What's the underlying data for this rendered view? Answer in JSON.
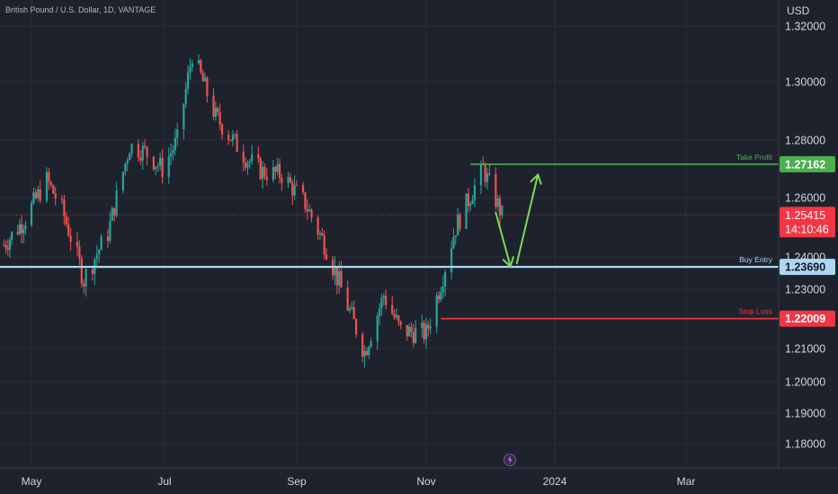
{
  "header": {
    "symbol_title": "British Pound / U.S. Dollar, 1D, VANTAGE",
    "currency": "USD"
  },
  "colors": {
    "background": "#1e222d",
    "up": "#26a69a",
    "down": "#ef5350",
    "grid": "#2a2e39",
    "axis_text": "#d1d4dc",
    "take_profit": "#4caf50",
    "buy_entry": "#aed6f1",
    "stop_loss": "#f23645",
    "arrow": "#7ed957",
    "current_price": "#f23645"
  },
  "chart_data": {
    "type": "candlestick",
    "y_ticks": [
      "1.32000",
      "1.30000",
      "1.28000",
      "1.26000",
      "1.24000",
      "1.23000",
      "1.21000",
      "1.20000",
      "1.19000",
      "1.18000"
    ],
    "x_ticks": [
      "May",
      "Jul",
      "Sep",
      "Nov",
      "2024",
      "Mar"
    ],
    "ylim": [
      1.172,
      1.325
    ],
    "x_range_months": [
      "2023-04-15",
      "2024-03-25"
    ],
    "levels": [
      {
        "key": "take_profit",
        "label": "Take Profit",
        "value": 1.27162,
        "value_text": "1.27162",
        "start": "2023-11-22",
        "color": "#4caf50"
      },
      {
        "key": "buy_entry",
        "label": "Buy Entry",
        "value": 1.2369,
        "value_text": "1.23690",
        "start": "2023-04-15",
        "color": "#aed6f1"
      },
      {
        "key": "stop_loss",
        "label": "Stop Loss",
        "value": 1.22009,
        "value_text": "1.22009",
        "start": "2023-11-08",
        "color": "#f23645"
      }
    ],
    "current_price": {
      "value": 1.25415,
      "value_text": "1.25415",
      "countdown": "14:10:46"
    },
    "projection_arrows": [
      {
        "from": [
          "2023-12-04",
          1.255
        ],
        "to": [
          "2023-12-11",
          1.237
        ]
      },
      {
        "from": [
          "2023-12-14",
          1.238
        ],
        "to": [
          "2023-12-24",
          1.268
        ]
      }
    ],
    "price_path": [
      [
        "2023-04-17",
        1.244
      ],
      [
        "2023-04-28",
        1.253
      ],
      [
        "2023-05-08",
        1.266
      ],
      [
        "2023-05-15",
        1.256
      ],
      [
        "2023-05-25",
        1.233
      ],
      [
        "2023-06-05",
        1.248
      ],
      [
        "2023-06-15",
        1.278
      ],
      [
        "2023-06-22",
        1.276
      ],
      [
        "2023-06-30",
        1.27
      ],
      [
        "2023-07-07",
        1.28
      ],
      [
        "2023-07-14",
        1.31
      ],
      [
        "2023-07-25",
        1.288
      ],
      [
        "2023-08-08",
        1.274
      ],
      [
        "2023-08-16",
        1.269
      ],
      [
        "2023-08-25",
        1.268
      ],
      [
        "2023-09-05",
        1.258
      ],
      [
        "2023-09-15",
        1.243
      ],
      [
        "2023-09-22",
        1.23
      ],
      [
        "2023-10-03",
        1.209
      ],
      [
        "2023-10-12",
        1.228
      ],
      [
        "2023-10-20",
        1.216
      ],
      [
        "2023-11-01",
        1.215
      ],
      [
        "2023-11-08",
        1.232
      ],
      [
        "2023-11-15",
        1.25
      ],
      [
        "2023-11-28",
        1.27
      ],
      [
        "2023-12-07",
        1.254
      ]
    ]
  }
}
